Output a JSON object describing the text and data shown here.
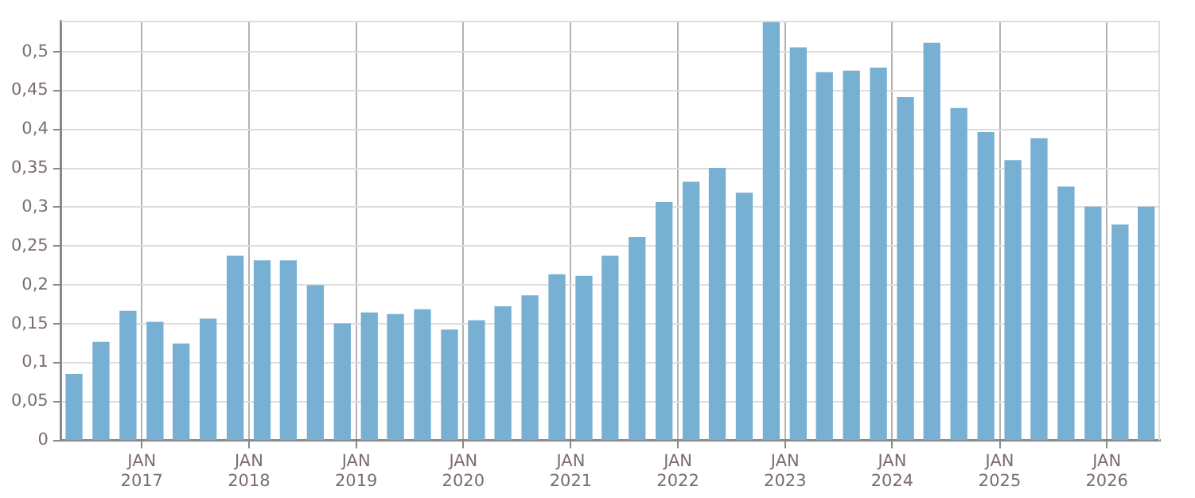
{
  "chart_data": {
    "type": "bar",
    "color": "#77b0d2",
    "grid": true,
    "x": [
      "2016-05-15",
      "2016-08-15",
      "2016-11-15",
      "2017-02-15",
      "2017-05-15",
      "2017-08-15",
      "2017-11-15",
      "2018-02-15",
      "2018-05-15",
      "2018-08-15",
      "2018-11-15",
      "2019-02-15",
      "2019-05-15",
      "2019-08-15",
      "2019-11-15",
      "2020-02-15",
      "2020-05-15",
      "2020-08-15",
      "2020-11-15",
      "2021-02-15",
      "2021-05-15",
      "2021-08-15",
      "2021-11-15",
      "2022-02-15",
      "2022-05-15",
      "2022-08-15",
      "2022-11-15",
      "2023-02-15",
      "2023-05-15",
      "2023-08-15",
      "2023-11-15",
      "2024-02-15",
      "2024-05-15",
      "2024-08-15",
      "2024-11-15",
      "2025-02-15",
      "2025-05-15",
      "2025-08-15",
      "2025-11-15",
      "2026-02-15",
      "2026-05-15"
    ],
    "values": [
      0.085,
      0.126,
      0.166,
      0.152,
      0.124,
      0.156,
      0.237,
      0.231,
      0.231,
      0.199,
      0.15,
      0.164,
      0.162,
      0.168,
      0.142,
      0.154,
      0.172,
      0.186,
      0.213,
      0.211,
      0.237,
      0.261,
      0.306,
      0.332,
      0.35,
      0.318,
      0.54,
      0.505,
      0.473,
      0.475,
      0.479,
      0.441,
      0.511,
      0.427,
      0.396,
      0.36,
      0.388,
      0.326,
      0.3,
      0.277,
      0.3
    ],
    "xlim": [
      "2016-04-01",
      "2026-07-01"
    ],
    "xticks": [
      {
        "value": "2017-01-01",
        "label": "JAN\n2017"
      },
      {
        "value": "2018-01-01",
        "label": "JAN\n2018"
      },
      {
        "value": "2019-01-01",
        "label": "JAN\n2019"
      },
      {
        "value": "2020-01-01",
        "label": "JAN\n2020"
      },
      {
        "value": "2021-01-01",
        "label": "JAN\n2021"
      },
      {
        "value": "2022-01-01",
        "label": "JAN\n2022"
      },
      {
        "value": "2023-01-01",
        "label": "JAN\n2023"
      },
      {
        "value": "2024-01-01",
        "label": "JAN\n2024"
      },
      {
        "value": "2025-01-01",
        "label": "JAN\n2025"
      },
      {
        "value": "2026-01-01",
        "label": "JAN\n2026"
      }
    ],
    "ylim": [
      0,
      0.54
    ],
    "yticks": [
      0,
      {
        "value": 0.05,
        "label": "0,05"
      },
      {
        "value": 0.1,
        "label": "0,1"
      },
      {
        "value": 0.15,
        "label": "0,15"
      },
      {
        "value": 0.2,
        "label": "0,2"
      },
      {
        "value": 0.25,
        "label": "0,25"
      },
      {
        "value": 0.3,
        "label": "0,3"
      },
      {
        "value": 0.35,
        "label": "0,35"
      },
      {
        "value": 0.4,
        "label": "0,4"
      },
      {
        "value": 0.45,
        "label": "0,45"
      },
      {
        "value": 0.5,
        "label": "0,5"
      }
    ]
  }
}
